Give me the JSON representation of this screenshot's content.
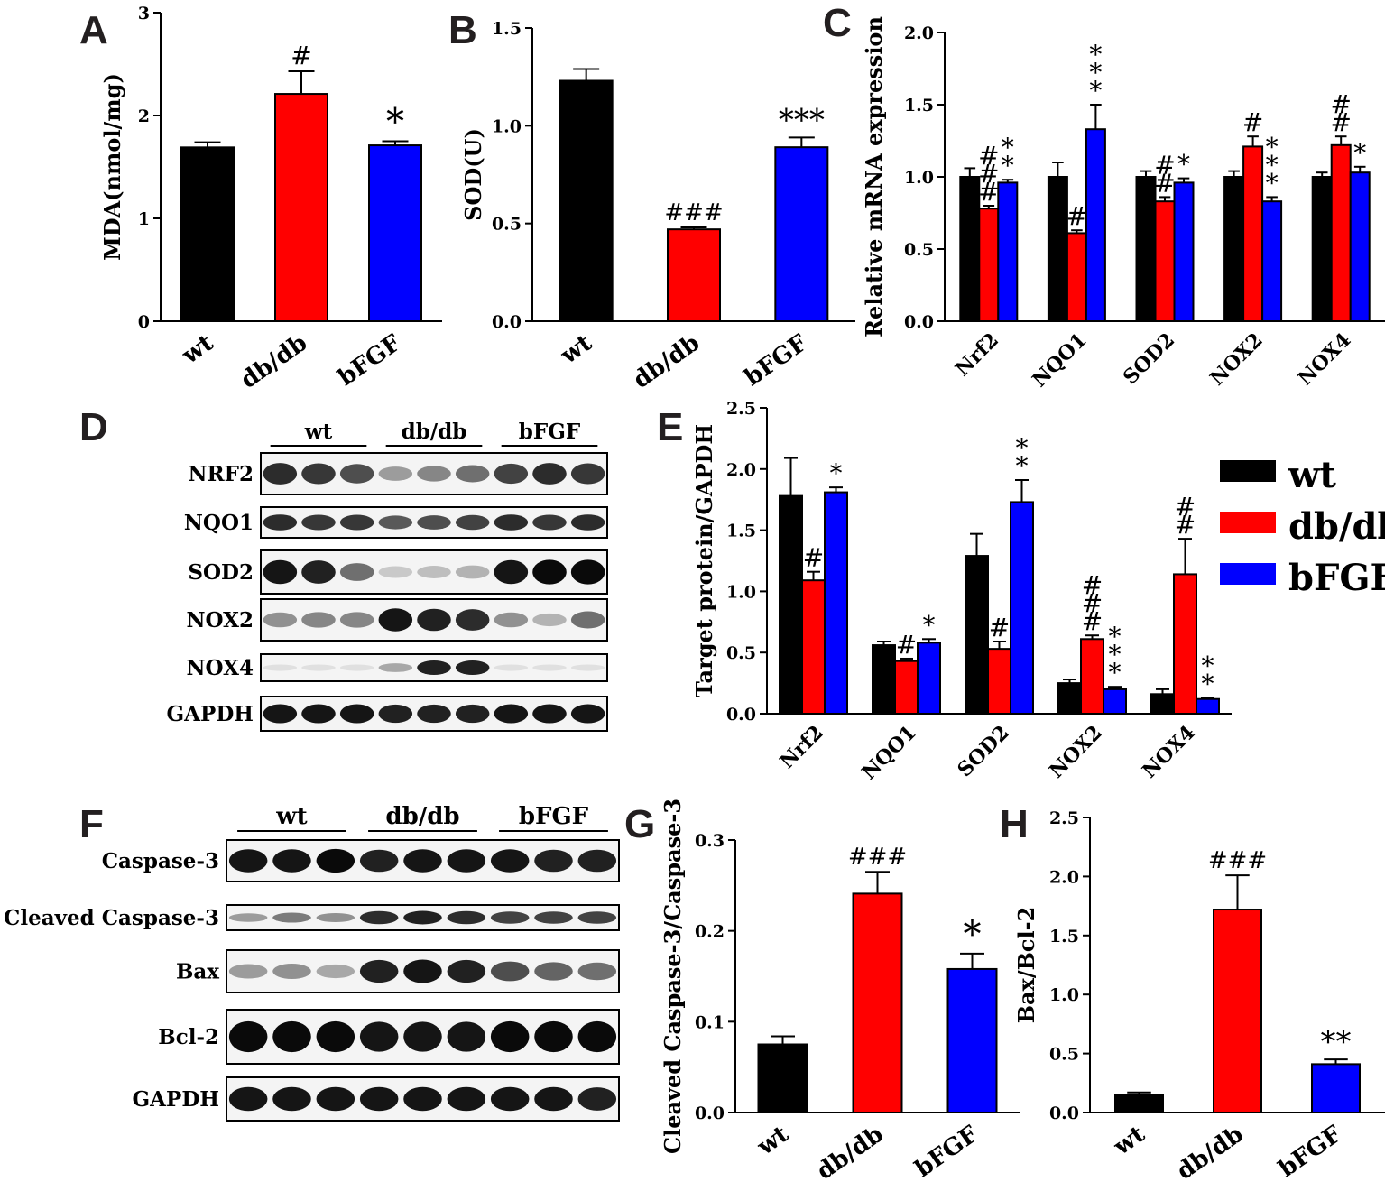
{
  "panel_labels": [
    "A",
    "B",
    "C",
    "D",
    "E",
    "F",
    "G",
    "H"
  ],
  "colors": {
    "wt": "#000000",
    "db/db": "#ff0000",
    "bFGF": "#0000ff"
  },
  "chart_data": [
    {
      "id": "A",
      "type": "bar",
      "categories": [
        "wt",
        "db/db",
        "bFGF"
      ],
      "values": [
        1.69,
        2.21,
        1.71
      ],
      "errors": [
        0.05,
        0.22,
        0.04
      ],
      "annotations": [
        "",
        "#",
        "*"
      ],
      "ylabel": "MDA(nmol/mg)",
      "ylim": [
        0,
        3
      ],
      "yticks": [
        "0",
        "1",
        "2",
        "3"
      ]
    },
    {
      "id": "B",
      "type": "bar",
      "categories": [
        "wt",
        "db/db",
        "bFGF"
      ],
      "values": [
        1.23,
        0.47,
        0.89
      ],
      "errors": [
        0.06,
        0.01,
        0.05
      ],
      "annotations": [
        "",
        "###",
        "***"
      ],
      "ylabel": "SOD(U)",
      "ylim": [
        0,
        1.5
      ],
      "yticks": [
        "0.0",
        "0.5",
        "1.0",
        "1.5"
      ]
    },
    {
      "id": "C",
      "type": "bar",
      "categories": [
        "Nrf2",
        "NQO1",
        "SOD2",
        "NOX2",
        "NOX4"
      ],
      "ylabel": "Relative mRNA expression",
      "ylim": [
        0,
        2
      ],
      "yticks": [
        "0.0",
        "0.5",
        "1.0",
        "1.5",
        "2.0"
      ],
      "series": [
        {
          "name": "wt",
          "values": [
            1.0,
            1.0,
            1.0,
            1.0,
            1.0
          ],
          "errors": [
            0.06,
            0.1,
            0.04,
            0.04,
            0.03
          ],
          "annotations": [
            "",
            "",
            "",
            "",
            ""
          ]
        },
        {
          "name": "db/db",
          "values": [
            0.78,
            0.61,
            0.83,
            1.21,
            1.22
          ],
          "errors": [
            0.02,
            0.02,
            0.03,
            0.07,
            0.06
          ],
          "annotations": [
            "###",
            "#",
            "##",
            "#",
            "##"
          ]
        },
        {
          "name": "bFGF",
          "values": [
            0.96,
            1.33,
            0.96,
            0.83,
            1.03
          ],
          "errors": [
            0.02,
            0.17,
            0.03,
            0.03,
            0.04
          ],
          "annotations": [
            "**",
            "***",
            "*",
            "***",
            "*"
          ]
        }
      ]
    },
    {
      "id": "E",
      "type": "bar",
      "categories": [
        "Nrf2",
        "NQO1",
        "SOD2",
        "NOX2",
        "NOX4"
      ],
      "ylabel": "Target protein/GAPDH",
      "ylim": [
        0,
        2.5
      ],
      "yticks": [
        "0.0",
        "0.5",
        "1.0",
        "1.5",
        "2.0",
        "2.5"
      ],
      "legend": [
        "wt",
        "db/db",
        "bFGF"
      ],
      "series": [
        {
          "name": "wt",
          "values": [
            1.78,
            0.56,
            1.29,
            0.25,
            0.16
          ],
          "errors": [
            0.31,
            0.03,
            0.18,
            0.03,
            0.04
          ],
          "annotations": [
            "",
            "",
            "",
            "",
            ""
          ]
        },
        {
          "name": "db/db",
          "values": [
            1.09,
            0.43,
            0.53,
            0.61,
            1.14
          ],
          "errors": [
            0.07,
            0.02,
            0.06,
            0.03,
            0.29
          ],
          "annotations": [
            "#",
            "#",
            "#",
            "###",
            "##"
          ]
        },
        {
          "name": "bFGF",
          "values": [
            1.81,
            0.58,
            1.73,
            0.2,
            0.12
          ],
          "errors": [
            0.04,
            0.03,
            0.18,
            0.02,
            0.01
          ],
          "annotations": [
            "*",
            "*",
            "**",
            "***",
            "**"
          ]
        }
      ]
    },
    {
      "id": "G",
      "type": "bar",
      "categories": [
        "wt",
        "db/db",
        "bFGF"
      ],
      "values": [
        0.075,
        0.241,
        0.158
      ],
      "errors": [
        0.009,
        0.024,
        0.017
      ],
      "annotations": [
        "",
        "###",
        "*"
      ],
      "ylabel": "Cleaved Caspase-3/Caspase-3",
      "ylim": [
        0,
        0.3
      ],
      "yticks": [
        "0.0",
        "0.1",
        "0.2",
        "0.3"
      ]
    },
    {
      "id": "H",
      "type": "bar",
      "categories": [
        "wt",
        "db/db",
        "bFGF"
      ],
      "values": [
        0.15,
        1.72,
        0.41
      ],
      "errors": [
        0.02,
        0.29,
        0.04
      ],
      "annotations": [
        "",
        "###",
        "**"
      ],
      "ylabel": "Bax/Bcl-2",
      "ylim": [
        0,
        2.5
      ],
      "yticks": [
        "0.0",
        "0.5",
        "1.0",
        "1.5",
        "2.0",
        "2.5"
      ]
    }
  ],
  "blot_D": {
    "groups": [
      "wt",
      "db/db",
      "bFGF"
    ],
    "rows": [
      {
        "label": "NRF2",
        "intensity": [
          0.85,
          0.8,
          0.7,
          0.35,
          0.45,
          0.55,
          0.75,
          0.85,
          0.8
        ]
      },
      {
        "label": "NQO1",
        "intensity": [
          0.85,
          0.8,
          0.8,
          0.65,
          0.7,
          0.75,
          0.85,
          0.8,
          0.85
        ]
      },
      {
        "label": "SOD2",
        "intensity": [
          0.95,
          0.9,
          0.55,
          0.15,
          0.2,
          0.25,
          0.95,
          1.0,
          1.0
        ]
      },
      {
        "label": "NOX2",
        "intensity": [
          0.4,
          0.45,
          0.45,
          0.95,
          0.9,
          0.85,
          0.4,
          0.25,
          0.55
        ]
      },
      {
        "label": "NOX4",
        "intensity": [
          0.05,
          0.05,
          0.05,
          0.3,
          0.9,
          0.9,
          0.05,
          0.05,
          0.05
        ]
      },
      {
        "label": "GAPDH",
        "intensity": [
          0.95,
          0.95,
          0.95,
          0.9,
          0.9,
          0.9,
          0.95,
          0.95,
          0.95
        ]
      }
    ]
  },
  "blot_F": {
    "groups": [
      "wt",
      "db/db",
      "bFGF"
    ],
    "rows": [
      {
        "label": "Caspase-3",
        "intensity": [
          0.95,
          0.95,
          1.0,
          0.9,
          0.95,
          0.95,
          0.95,
          0.9,
          0.9
        ]
      },
      {
        "label": "Cleaved Caspase-3",
        "intensity": [
          0.35,
          0.5,
          0.4,
          0.85,
          0.9,
          0.85,
          0.75,
          0.75,
          0.75
        ]
      },
      {
        "label": "Bax",
        "intensity": [
          0.35,
          0.4,
          0.3,
          0.9,
          0.95,
          0.9,
          0.7,
          0.6,
          0.55
        ]
      },
      {
        "label": "Bcl-2",
        "intensity": [
          1.0,
          1.0,
          1.0,
          0.95,
          0.95,
          0.95,
          1.0,
          1.0,
          1.0
        ]
      },
      {
        "label": "GAPDH",
        "intensity": [
          0.95,
          0.95,
          0.95,
          0.95,
          0.95,
          0.95,
          0.95,
          0.95,
          0.9
        ]
      }
    ]
  }
}
